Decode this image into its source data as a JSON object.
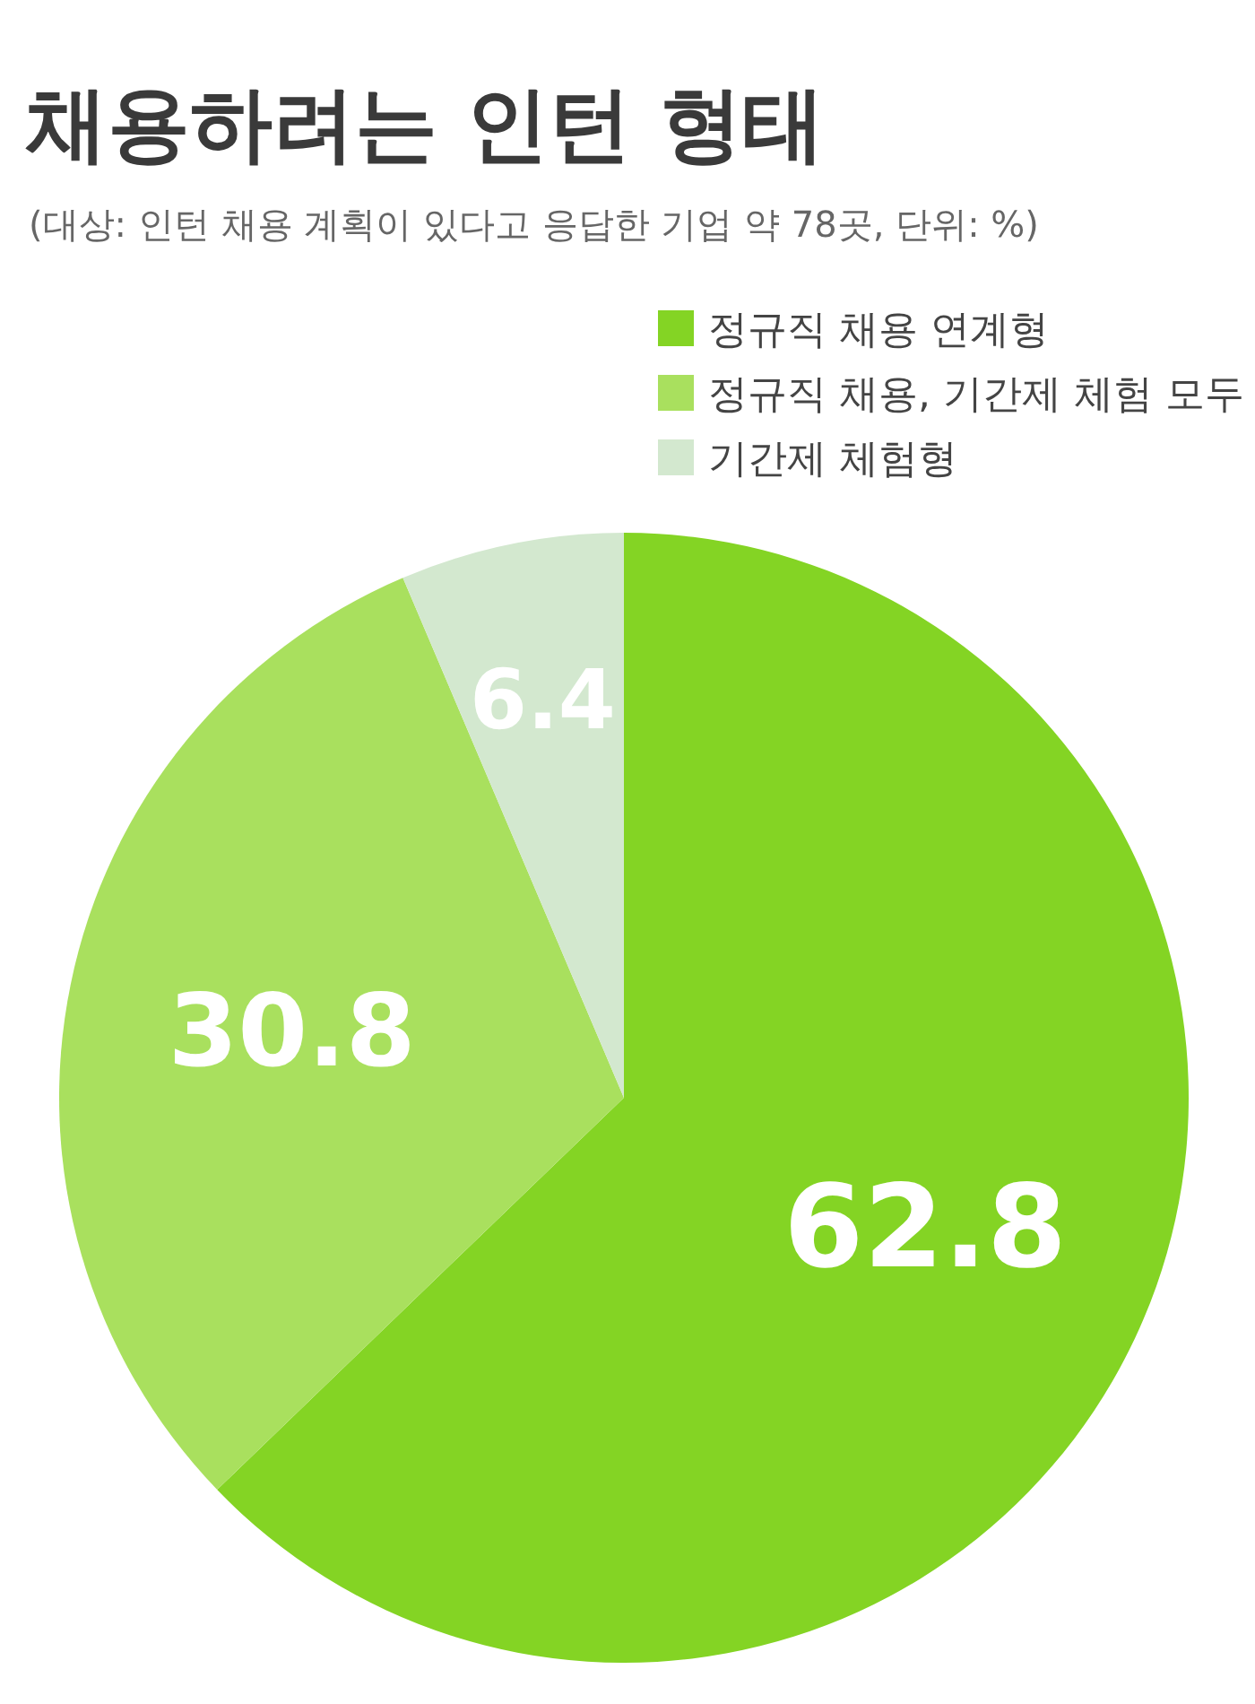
{
  "chart_data": {
    "type": "pie",
    "title": "채용하려는 인턴 형태",
    "subtitle": "(대상: 인턴 채용 계획이 있다고 응답한 기업 약 78곳, 단위: %)",
    "categories": [
      "정규직 채용 연계형",
      "정규직 채용, 기간제 체험 모두",
      "기간제 체험형"
    ],
    "values": [
      62.8,
      30.8,
      6.4
    ],
    "colors": [
      "#84d424",
      "#a9e05e",
      "#d3e8cf"
    ],
    "data_labels": true,
    "legend": "top right"
  }
}
